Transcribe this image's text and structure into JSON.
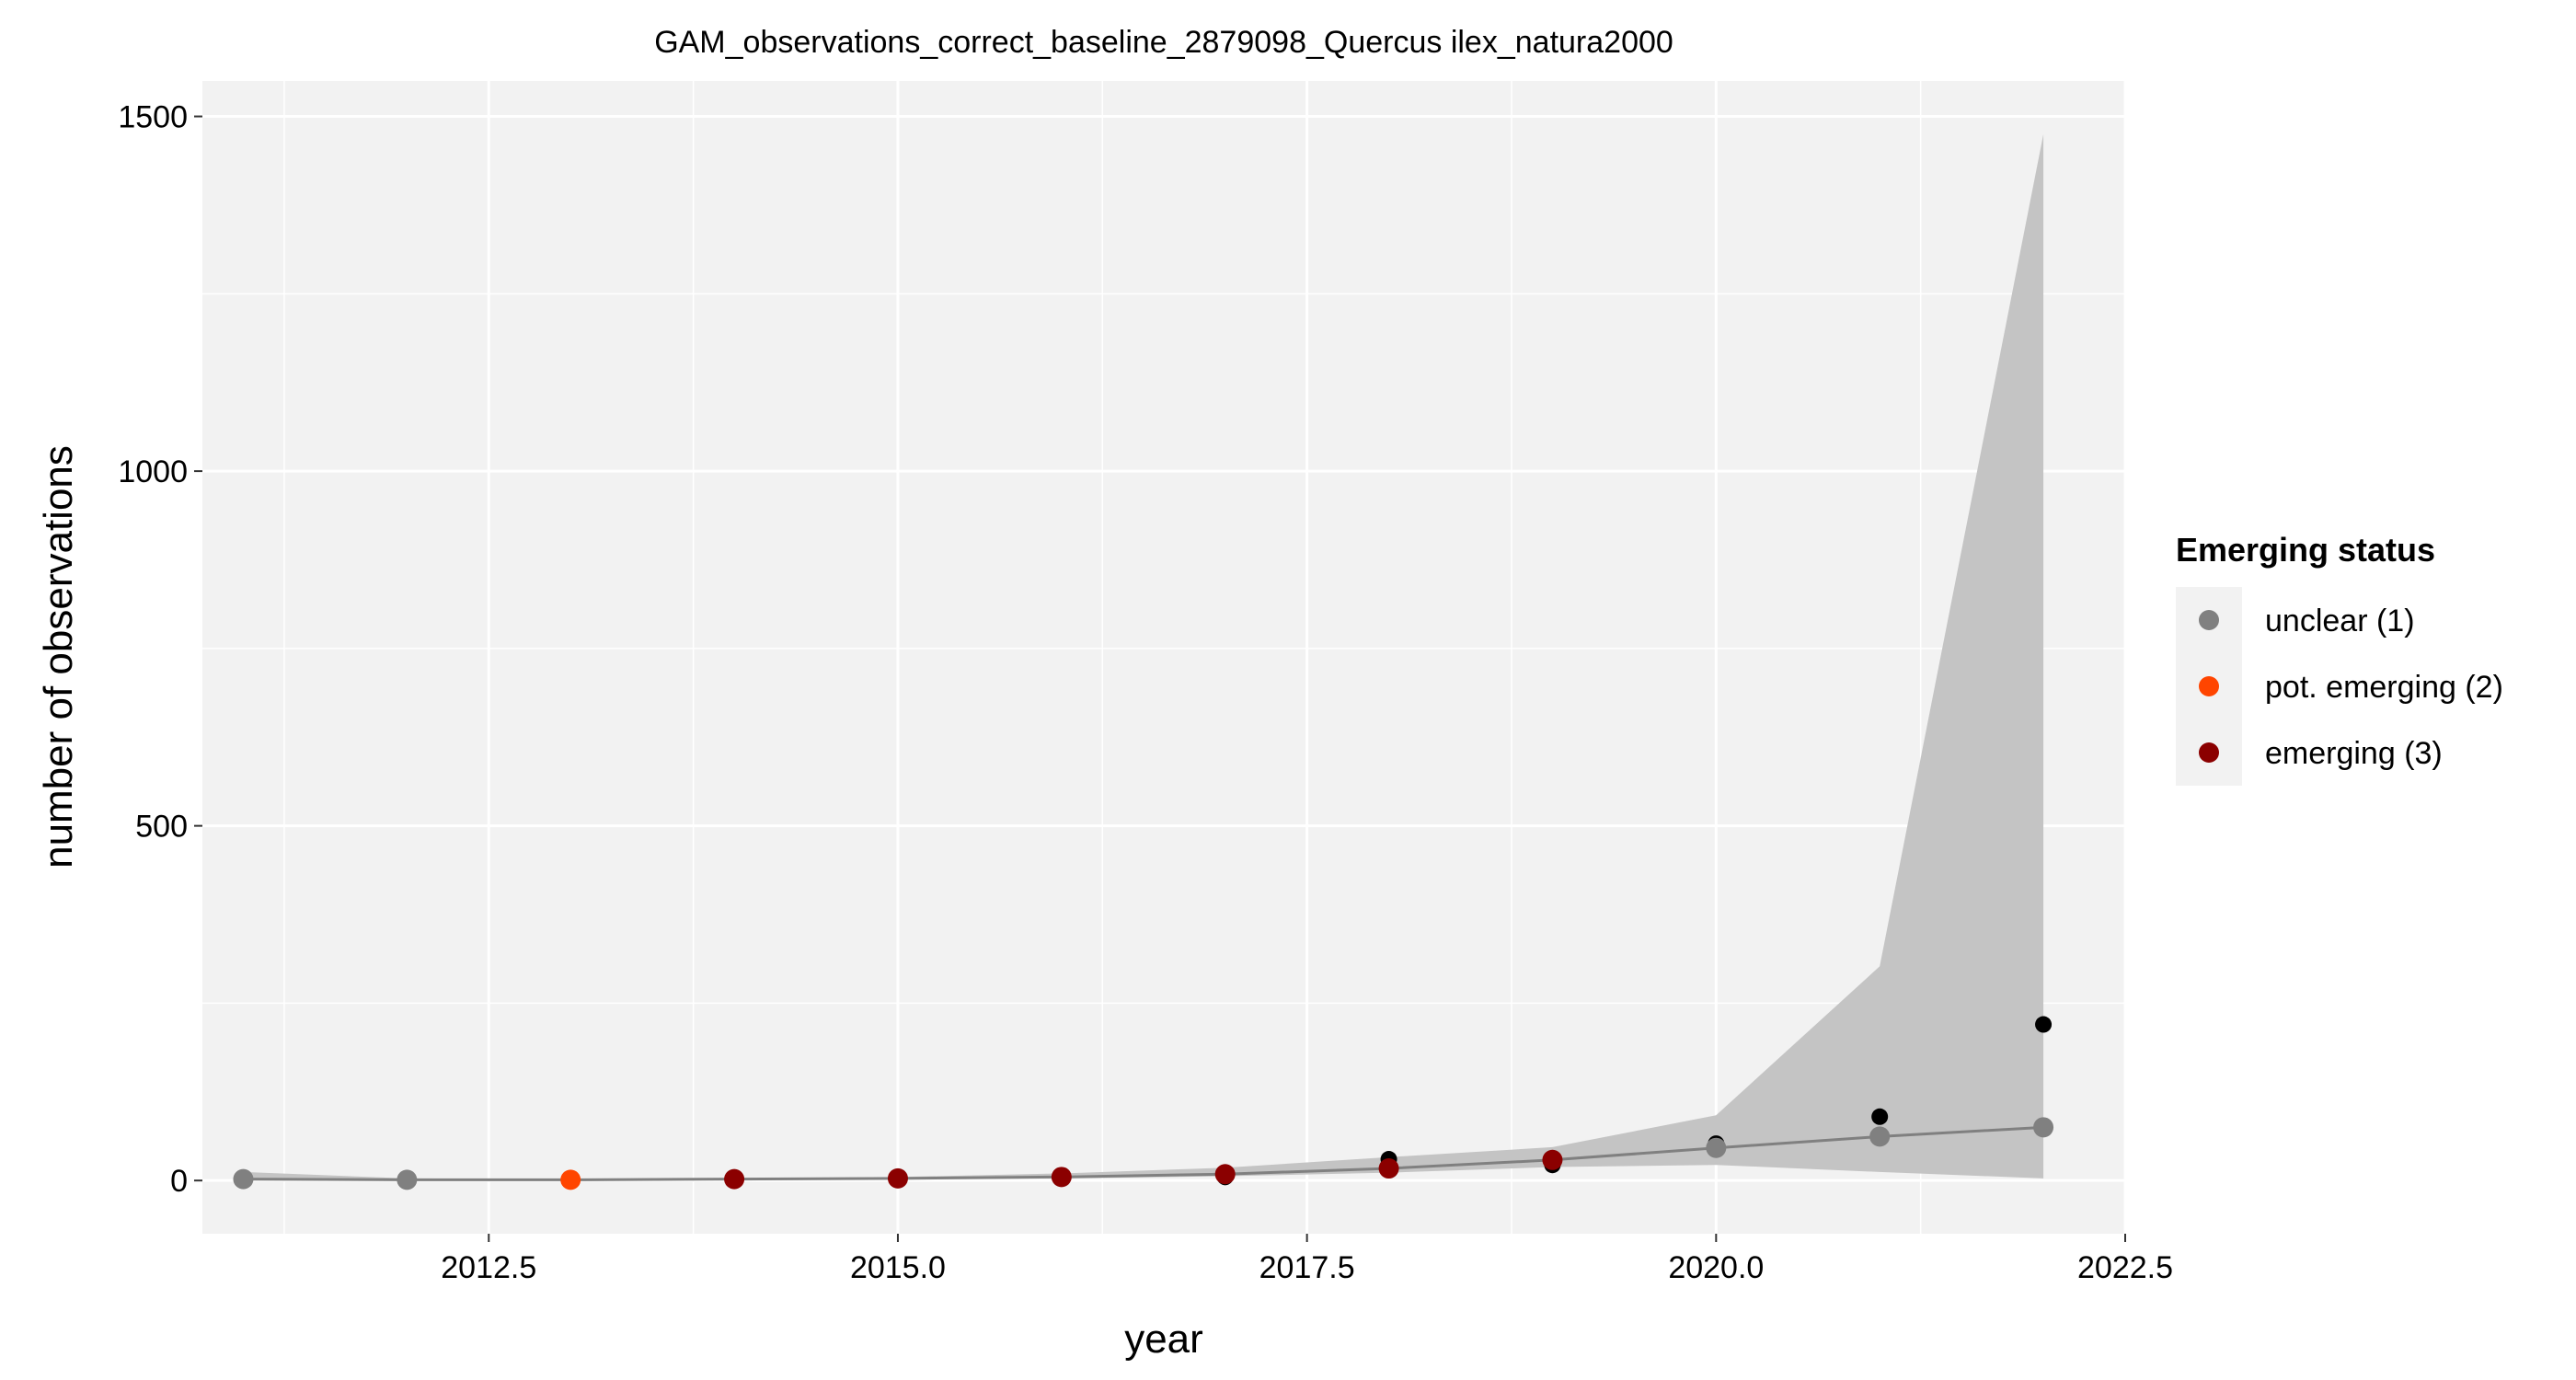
{
  "chart_data": {
    "type": "line",
    "title": "GAM_observations_correct_baseline_2879098_Quercus ilex_natura2000",
    "xlabel": "year",
    "ylabel": "number of observations",
    "xlim": [
      2010.75,
      2022.5
    ],
    "ylim": [
      -75,
      1550
    ],
    "x_ticks": [
      2012.5,
      2015.0,
      2017.5,
      2020.0,
      2022.5
    ],
    "x_tick_labels": [
      "2012.5",
      "2015.0",
      "2017.5",
      "2020.0",
      "2022.5"
    ],
    "y_ticks": [
      0,
      500,
      1000,
      1500
    ],
    "y_tick_labels": [
      "0",
      "500",
      "1000",
      "1500"
    ],
    "grid": true,
    "legend": {
      "title": "Emerging status",
      "position": "right",
      "items": [
        {
          "label": "unclear (1)",
          "color": "#808080"
        },
        {
          "label": "pot. emerging (2)",
          "color": "#ff4500"
        },
        {
          "label": "emerging (3)",
          "color": "#8b0000"
        }
      ]
    },
    "fit": {
      "line_color": "#808080",
      "band_color": "#c4c4c4",
      "x": [
        2011,
        2012,
        2013,
        2014,
        2015,
        2016,
        2017,
        2018,
        2019,
        2020,
        2021,
        2022
      ],
      "y": [
        2,
        1,
        1,
        2,
        3,
        5,
        9,
        17,
        29,
        46,
        62,
        75
      ],
      "lower": [
        0,
        0,
        0,
        1,
        2,
        3,
        6,
        11,
        19,
        22,
        12,
        3
      ],
      "upper": [
        12,
        3,
        2,
        3,
        5,
        10,
        18,
        33,
        47,
        92,
        302,
        1475
      ]
    },
    "observations": {
      "color": "#000000",
      "x": [
        2011,
        2012,
        2013,
        2014,
        2015,
        2016,
        2017,
        2018,
        2019,
        2020,
        2021,
        2022
      ],
      "y": [
        2,
        1,
        1,
        1,
        3,
        6,
        5,
        30,
        22,
        52,
        90,
        220
      ]
    },
    "status_points": {
      "x": [
        2011,
        2012,
        2013,
        2014,
        2015,
        2016,
        2017,
        2018,
        2019,
        2020,
        2021,
        2022
      ],
      "y": [
        2,
        1,
        1,
        2,
        3,
        5,
        9,
        17,
        29,
        46,
        62,
        75
      ],
      "status": [
        1,
        1,
        2,
        3,
        3,
        3,
        3,
        3,
        3,
        1,
        1,
        1
      ]
    }
  }
}
